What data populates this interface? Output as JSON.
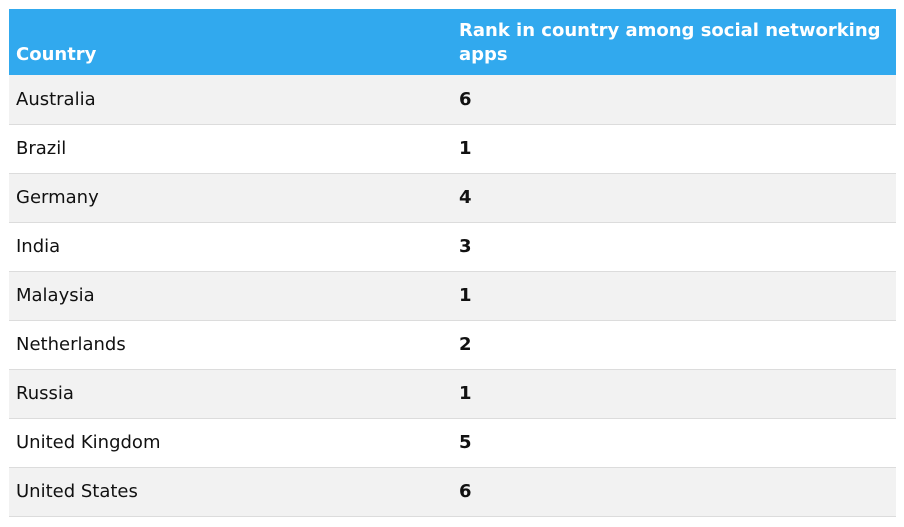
{
  "table": {
    "header": [
      "Country",
      "Rank in country among social networking apps"
    ],
    "rows": [
      [
        "Australia",
        6
      ],
      [
        "Brazil",
        1
      ],
      [
        "Germany",
        4
      ],
      [
        "India",
        3
      ],
      [
        "Malaysia",
        1
      ],
      [
        "Netherlands",
        2
      ],
      [
        "Russia",
        1
      ],
      [
        "United Kingdom",
        5
      ],
      [
        "United States",
        6
      ]
    ]
  }
}
